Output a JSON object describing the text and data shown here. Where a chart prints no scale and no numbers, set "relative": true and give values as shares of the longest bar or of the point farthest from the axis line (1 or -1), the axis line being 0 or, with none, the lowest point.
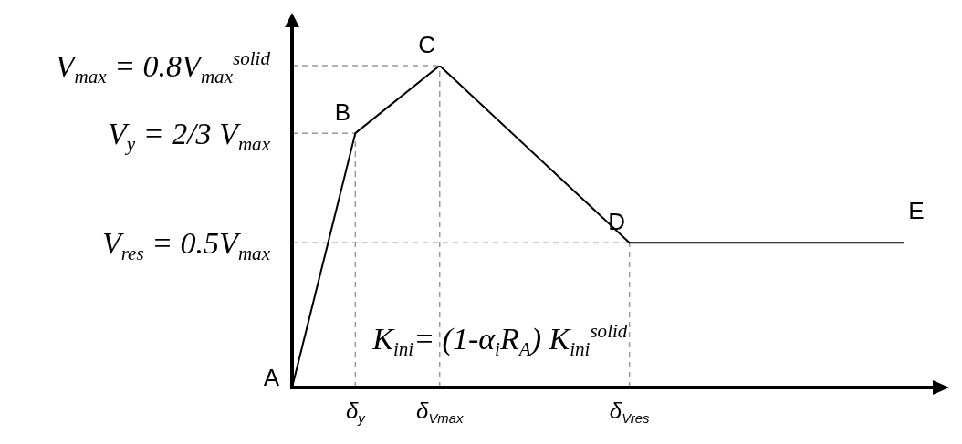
{
  "chart_data": {
    "type": "line",
    "relative": true,
    "marker": "none",
    "line_style": "solid",
    "categories": [
      null,
      null,
      null,
      "δ$_{y}$",
      null,
      null,
      null,
      "δ$_{Vmax}$",
      null,
      null,
      null,
      null,
      null,
      null,
      null,
      null,
      "δ$_{Vres}$",
      null,
      null,
      null,
      null,
      null,
      null,
      null,
      null,
      null,
      null,
      null,
      null,
      null
    ],
    "series": [
      {
        "color": "#000000",
        "values": [
          0,
          null,
          null,
          0.79,
          null,
          null,
          null,
          1,
          null,
          null,
          null,
          null,
          null,
          null,
          null,
          null,
          0.45,
          null,
          null,
          null,
          null,
          null,
          null,
          null,
          null,
          null,
          null,
          null,
          null,
          0.45
        ]
      }
    ],
    "ref_lines": [
      {
        "axis": "x",
        "value": "δ$_{y}$",
        "label": null,
        "color": "#999999",
        "line_style": "dashed"
      },
      {
        "axis": "x",
        "value": "δ$_{Vmax}$",
        "label": null,
        "color": "#999999",
        "line_style": "dashed"
      },
      {
        "axis": "x",
        "value": "δ$_{Vres}$",
        "label": null,
        "color": "#999999",
        "line_style": "dashed"
      },
      {
        "axis": "y",
        "value": 1,
        "label": null,
        "color": "#999999",
        "line_style": "dashed"
      },
      {
        "axis": "y",
        "value": 0.79,
        "label": null,
        "color": "#999999",
        "line_style": "dashed"
      },
      {
        "axis": "y",
        "value": 0.45,
        "label": null,
        "color": "#999999",
        "line_style": "dashed"
      }
    ],
    "annotations": [
      "A",
      "B",
      "C",
      "D",
      "E",
      "V$_{max}$ = 0.8V$_{max}$$^{solid}$",
      "V$_{y}$ = 2/3 V$_{max}$",
      "V$_{res}$ = 0.5V$_{max}$",
      "K$_{ini}$= (1-α$_{i}$R$_{A}$) K$_{ini}$$^{solid}$"
    ]
  }
}
